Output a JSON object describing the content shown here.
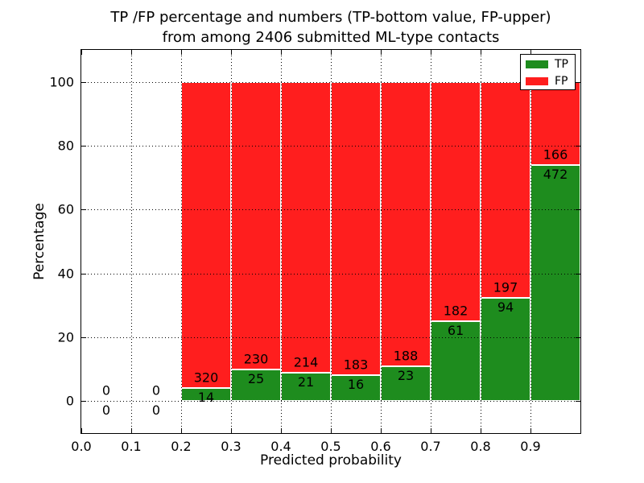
{
  "figure": {
    "title_line1": "TP /FP percentage and numbers (TP-bottom value, FP-upper)",
    "title_line2": "from among 2406 submitted ML-type contacts"
  },
  "chart_data": {
    "type": "bar",
    "stacked": true,
    "title": "TP /FP percentage and numbers (TP-bottom value, FP-upper)\nfrom among 2406 submitted ML-type contacts",
    "xlabel": "Predicted probability",
    "ylabel": "Percentage",
    "xlim": [
      0.0,
      1.0
    ],
    "ylim": [
      -10,
      110
    ],
    "x_tick_values": [
      0.0,
      0.1,
      0.2,
      0.3,
      0.4,
      0.5,
      0.6,
      0.7,
      0.8,
      0.9
    ],
    "x_tick_labels": [
      "0.0",
      "0.1",
      "0.2",
      "0.3",
      "0.4",
      "0.5",
      "0.6",
      "0.7",
      "0.8",
      "0.9"
    ],
    "y_tick_values": [
      0,
      20,
      40,
      60,
      80,
      100
    ],
    "y_tick_labels": [
      "0",
      "20",
      "40",
      "60",
      "80",
      "100"
    ],
    "grid": "dotted",
    "legend_position": "upper right",
    "total_submitted": 2406,
    "series": [
      {
        "name": "TP",
        "color": "#1e8c1e",
        "stack_position": "bottom"
      },
      {
        "name": "FP",
        "color": "#ff1e1e",
        "stack_position": "top"
      }
    ],
    "bins": [
      {
        "range": [
          0.0,
          0.1
        ],
        "tp": 0,
        "fp": 0
      },
      {
        "range": [
          0.1,
          0.2
        ],
        "tp": 0,
        "fp": 0
      },
      {
        "range": [
          0.2,
          0.3
        ],
        "tp": 14,
        "fp": 320
      },
      {
        "range": [
          0.3,
          0.4
        ],
        "tp": 25,
        "fp": 230
      },
      {
        "range": [
          0.4,
          0.5
        ],
        "tp": 21,
        "fp": 214
      },
      {
        "range": [
          0.5,
          0.6
        ],
        "tp": 16,
        "fp": 183
      },
      {
        "range": [
          0.6,
          0.7
        ],
        "tp": 23,
        "fp": 188
      },
      {
        "range": [
          0.7,
          0.8
        ],
        "tp": 61,
        "fp": 182
      },
      {
        "range": [
          0.8,
          0.9
        ],
        "tp": 94,
        "fp": 197
      },
      {
        "range": [
          0.9,
          1.0
        ],
        "tp": 472,
        "fp": 166
      }
    ]
  }
}
